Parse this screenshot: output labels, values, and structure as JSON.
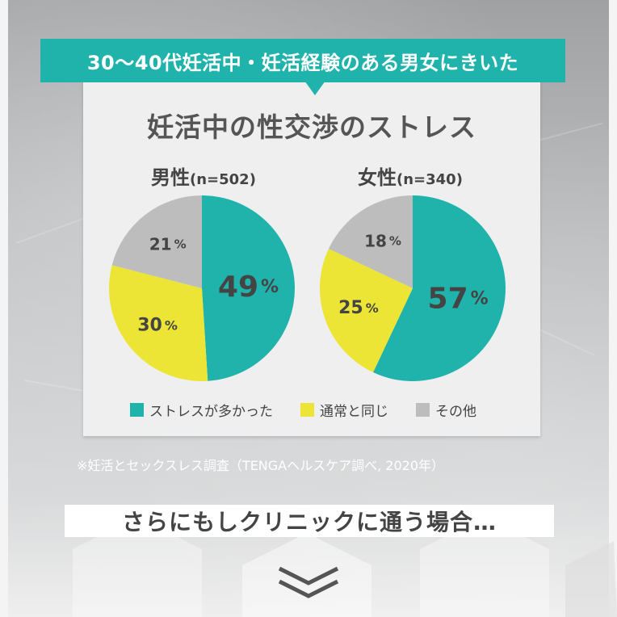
{
  "banner": {
    "text": "30〜40代妊活中・妊活経験のある男女にきいた"
  },
  "card": {
    "title": "妊活中の性交渉のストレス"
  },
  "chart_data": [
    {
      "type": "pie",
      "name": "男性",
      "n_label": "(n=502)",
      "slices": [
        {
          "category": "ストレスが多かった",
          "value": 49,
          "label": "49",
          "unit": "%"
        },
        {
          "category": "通常と同じ",
          "value": 30,
          "label": "30",
          "unit": "%"
        },
        {
          "category": "その他",
          "value": 21,
          "label": "21",
          "unit": "%"
        }
      ]
    },
    {
      "type": "pie",
      "name": "女性",
      "n_label": "(n=340)",
      "slices": [
        {
          "category": "ストレスが多かった",
          "value": 57,
          "label": "57",
          "unit": "%"
        },
        {
          "category": "通常と同じ",
          "value": 25,
          "label": "25",
          "unit": "%"
        },
        {
          "category": "その他",
          "value": 18,
          "label": "18",
          "unit": "%"
        }
      ]
    }
  ],
  "legend": [
    {
      "label": "ストレスが多かった",
      "color": "#1fb3ac"
    },
    {
      "label": "通常と同じ",
      "color": "#ece536"
    },
    {
      "label": "その他",
      "color": "#bdbdbd"
    }
  ],
  "colors": {
    "stress": "#1fb3ac",
    "same": "#ece536",
    "other": "#bdbdbd",
    "accent": "#1fb3ac"
  },
  "note": "※妊活とセックスレス調査（TENGAヘルスケア調べ, 2020年）",
  "clinic_text": "さらにもしクリニックに通う場合…",
  "icons": {
    "scroll_down": "double-chevron-down-icon"
  }
}
